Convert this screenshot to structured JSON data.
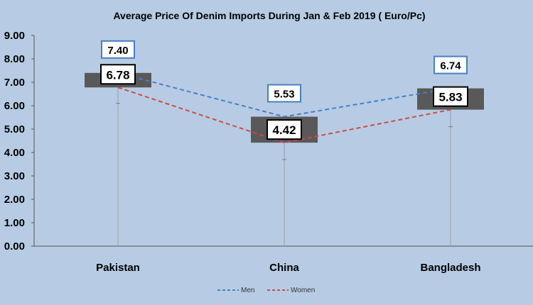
{
  "chart_data": {
    "type": "line",
    "title": "Average Price Of Denim Imports During Jan & Feb 2019 ( Euro/Pc)",
    "categories": [
      "Pakistan",
      "China",
      "Bangladesh"
    ],
    "ylim": [
      0,
      9
    ],
    "yticks": [
      "0.00",
      "1.00",
      "2.00",
      "3.00",
      "4.00",
      "5.00",
      "6.00",
      "7.00",
      "8.00",
      "9.00"
    ],
    "grid": false,
    "legend": "bottom",
    "series": [
      {
        "name": "Men",
        "values": [
          7.4,
          5.53,
          6.74
        ],
        "labels": [
          "7.40",
          "5.53",
          "6.74"
        ],
        "color": "#4a7ec4",
        "style": "dashed"
      },
      {
        "name": "Women",
        "values": [
          6.78,
          4.42,
          5.83
        ],
        "labels": [
          "6.78",
          "4.42",
          "5.83"
        ],
        "color": "#cf4a47",
        "style": "dashed"
      }
    ],
    "whisker_low": [
      6.1,
      3.7,
      5.1
    ],
    "box_color": "#595959"
  }
}
